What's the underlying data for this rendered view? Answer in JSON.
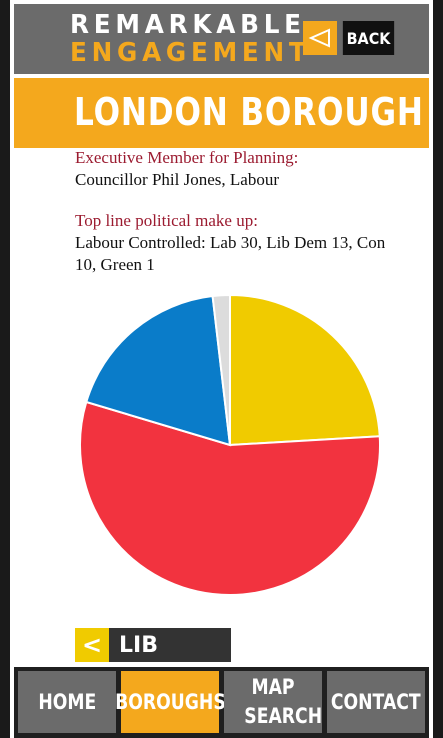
{
  "header": {
    "logo_line1": "REMARKABLE",
    "logo_line2": "ENGAGEMENT",
    "back_label": "BACK",
    "back_icon": "left-triangle-icon"
  },
  "title": "LONDON BOROUGH",
  "info": {
    "member_label": "Executive Member for Planning:",
    "member_value": "Councillor Phil Jones, Labour",
    "makeup_label": "Top line political make up:",
    "makeup_value": "Labour Controlled: Lab 30, Lib Dem 13, Con 10, Green 1"
  },
  "chart_data": {
    "type": "pie",
    "title": "",
    "slices": [
      {
        "label": "Lib Dem",
        "value": 13,
        "color": "#f0cb00"
      },
      {
        "label": "Lab",
        "value": 30,
        "color": "#f2333f"
      },
      {
        "label": "Con",
        "value": 10,
        "color": "#0a7cc9"
      },
      {
        "label": "Green",
        "value": 1,
        "color": "#dcdcdc"
      }
    ]
  },
  "party_selector": {
    "arrow": "<",
    "label": "LIB"
  },
  "nav": [
    {
      "label": "HOME",
      "active": false
    },
    {
      "label": "BOROUGHS",
      "active": true
    },
    {
      "label": "MAP SEARCH",
      "active": false
    },
    {
      "label": "CONTACT",
      "active": false
    }
  ],
  "colors": {
    "accent": "#f4a81d",
    "header_bg": "#6b6b6b",
    "label_red": "#9b1b30"
  }
}
